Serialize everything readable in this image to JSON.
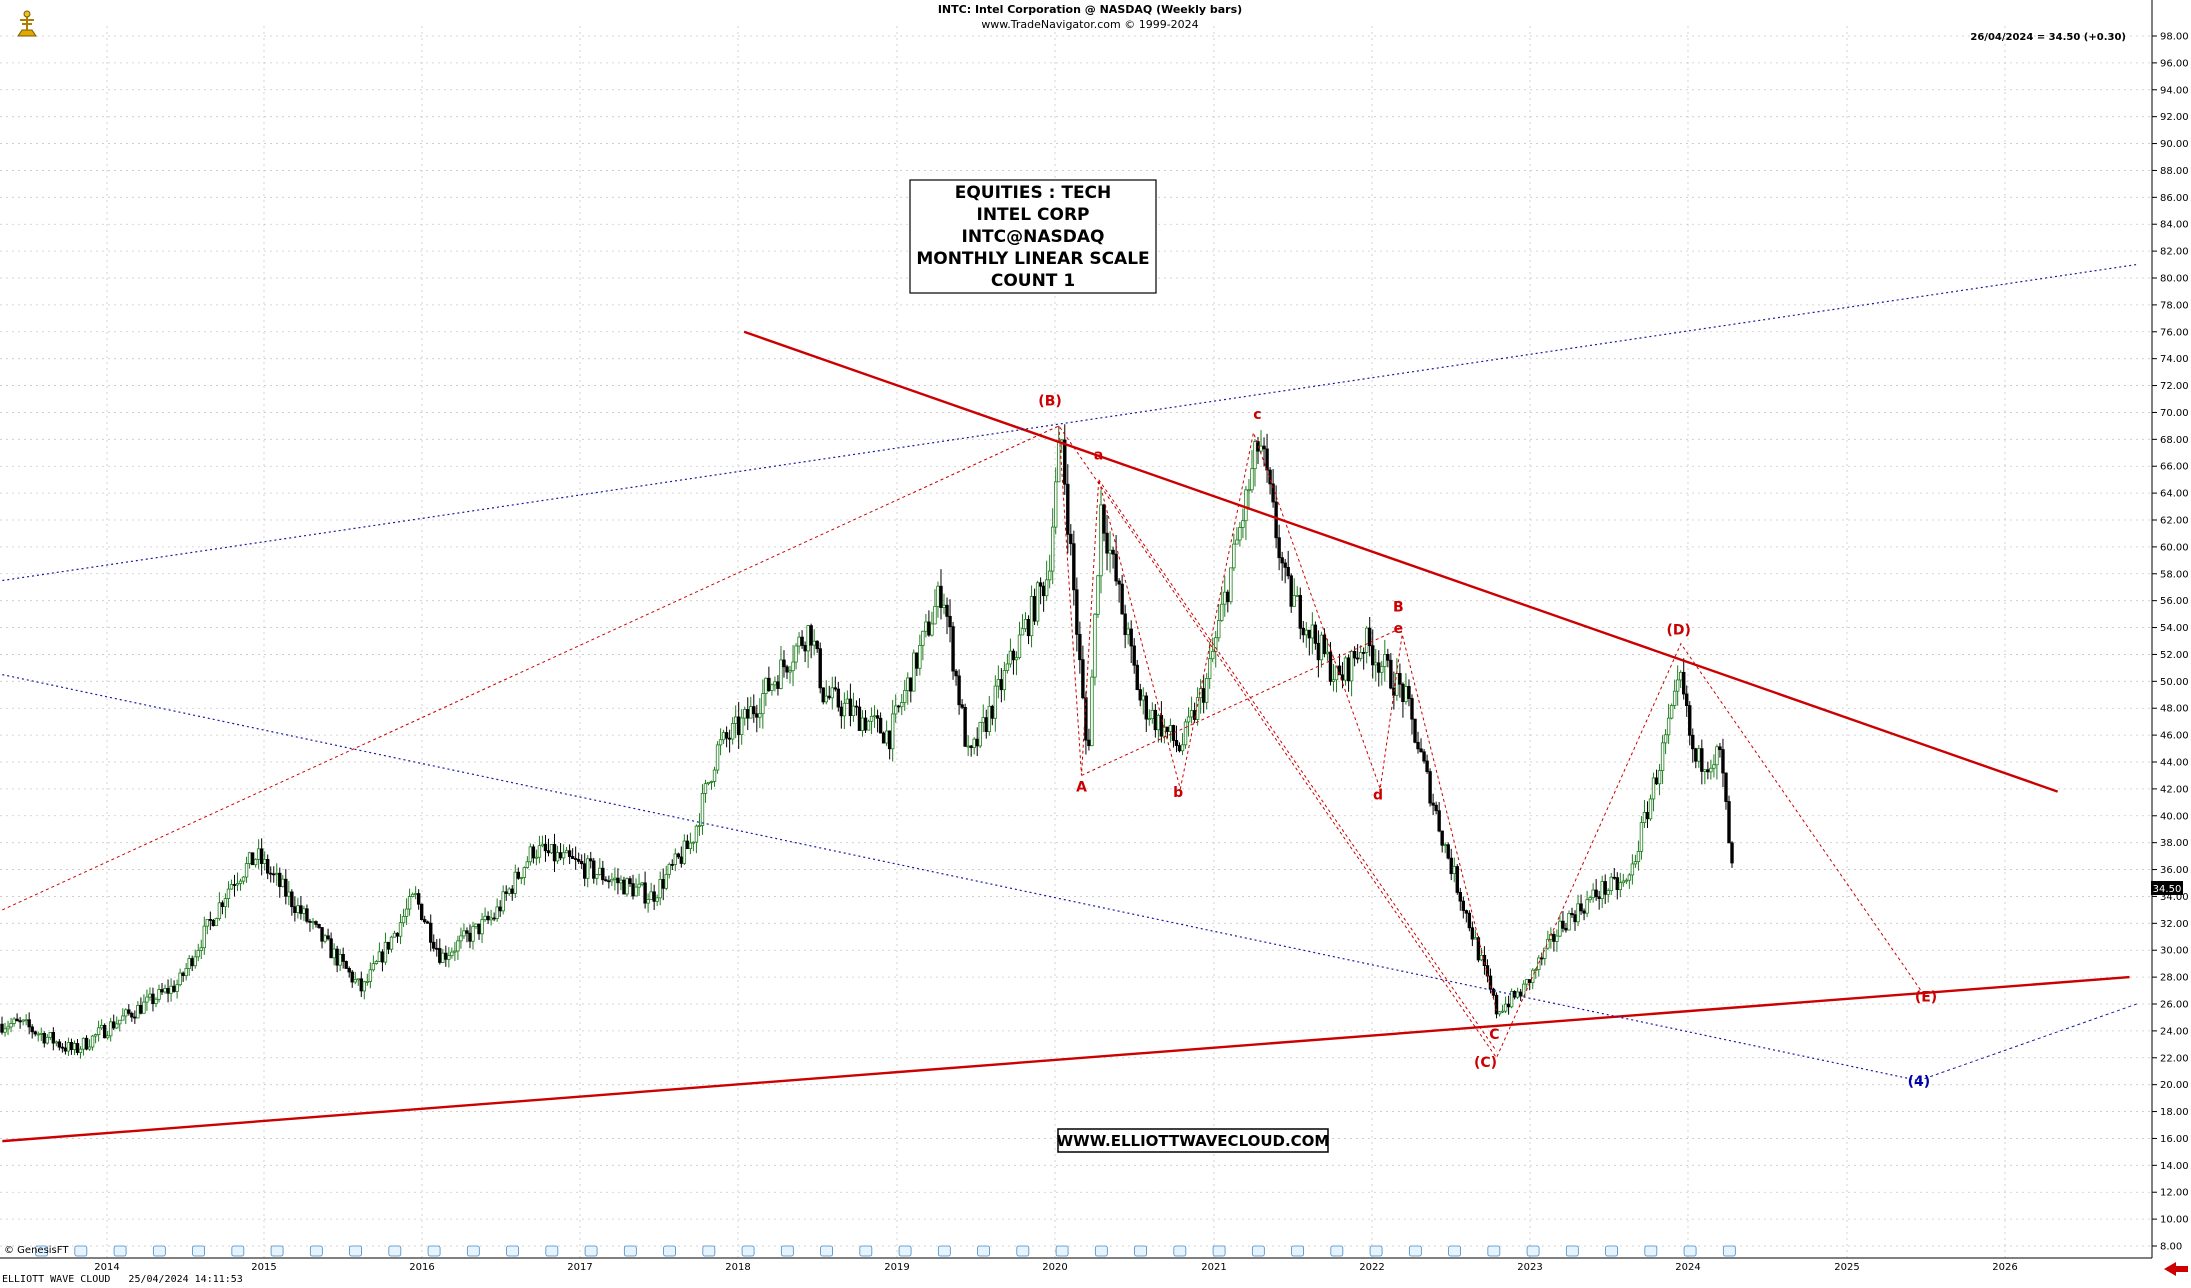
{
  "header": {
    "title": "INTC:  Intel Corporation @ NASDAQ  (Weekly bars)",
    "subtitle": "www.TradeNavigator.com © 1999-2024",
    "last_quote": "26/04/2024 = 34.50 (+0.30)",
    "price_tag": "34.50"
  },
  "info_box": {
    "lines": [
      "EQUITIES : TECH",
      "INTEL CORP",
      "INTC@NASDAQ",
      "MONTHLY LINEAR SCALE",
      "COUNT 1"
    ]
  },
  "watermark": "WWW.ELLIOTTWAVECLOUD.COM",
  "footer": {
    "left": "ELLIOTT WAVE CLOUD   25/04/2024 14:11:53",
    "credit": "© GenesisFT"
  },
  "colors": {
    "candle_up": "#1e7d1e",
    "candle_down": "#000000",
    "trend_red": "#cc0000",
    "trend_blue": "#1a1aa0",
    "label_red": "#cc0000",
    "label_blue": "#0000aa",
    "arrow_red": "#cc0000"
  },
  "chart_data": {
    "type": "candlestick",
    "title": "INTC:  Intel Corporation @ NASDAQ  (Weekly bars)",
    "x_axis": {
      "type": "date",
      "range": [
        "2013-06",
        "2026-11"
      ],
      "tick_labels": [
        "2014",
        "2015",
        "2016",
        "2017",
        "2018",
        "2019",
        "2020",
        "2021",
        "2022",
        "2023",
        "2024",
        "2025",
        "2026"
      ]
    },
    "y_axis": {
      "range": [
        8,
        98
      ],
      "step": 2,
      "grid": true,
      "tick_labels": [
        "8.00",
        "10.00",
        "12.00",
        "14.00",
        "16.00",
        "18.00",
        "20.00",
        "22.00",
        "24.00",
        "26.00",
        "28.00",
        "30.00",
        "32.00",
        "34.00",
        "36.00",
        "38.00",
        "40.00",
        "42.00",
        "44.00",
        "46.00",
        "48.00",
        "50.00",
        "52.00",
        "54.00",
        "56.00",
        "58.00",
        "60.00",
        "62.00",
        "64.00",
        "66.00",
        "68.00",
        "70.00",
        "72.00",
        "74.00",
        "76.00",
        "78.00",
        "80.00",
        "82.00",
        "84.00",
        "86.00",
        "88.00",
        "90.00",
        "92.00",
        "94.00",
        "96.00",
        "98.00"
      ]
    },
    "price_path": [
      [
        "2013-06",
        24.5
      ],
      [
        "2013-10",
        22.5
      ],
      [
        "2014-01",
        24.5
      ],
      [
        "2014-06",
        27.5
      ],
      [
        "2014-10",
        35.0
      ],
      [
        "2014-12",
        37.0
      ],
      [
        "2015-04",
        32.0
      ],
      [
        "2015-08",
        27.0
      ],
      [
        "2015-12",
        34.0
      ],
      [
        "2016-02",
        29.5
      ],
      [
        "2016-06",
        32.5
      ],
      [
        "2016-09",
        37.5
      ],
      [
        "2016-12",
        36.5
      ],
      [
        "2017-06",
        34.0
      ],
      [
        "2017-09",
        38.0
      ],
      [
        "2017-11",
        45.0
      ],
      [
        "2018-01",
        47.0
      ],
      [
        "2018-06",
        54.0
      ],
      [
        "2018-07",
        49.0
      ],
      [
        "2018-12",
        46.0
      ],
      [
        "2019-04",
        57.0
      ],
      [
        "2019-06",
        44.0
      ],
      [
        "2019-12",
        58.0
      ],
      [
        "2020-01",
        68.5
      ],
      [
        "2020-03",
        44.0
      ],
      [
        "2020-04",
        63.0
      ],
      [
        "2020-07",
        48.5
      ],
      [
        "2020-10",
        45.0
      ],
      [
        "2020-12",
        50.0
      ],
      [
        "2021-04",
        68.0
      ],
      [
        "2021-06",
        57.0
      ],
      [
        "2021-10",
        50.0
      ],
      [
        "2021-12",
        53.0
      ],
      [
        "2022-03",
        49.0
      ],
      [
        "2022-06",
        38.0
      ],
      [
        "2022-10",
        25.5
      ],
      [
        "2022-12",
        27.0
      ],
      [
        "2023-03",
        32.0
      ],
      [
        "2023-06",
        34.5
      ],
      [
        "2023-08",
        35.0
      ],
      [
        "2023-12",
        50.0
      ],
      [
        "2024-01",
        44.0
      ],
      [
        "2024-03",
        44.5
      ],
      [
        "2024-04",
        34.5
      ]
    ],
    "wave_labels": [
      {
        "text": "(B)",
        "x": "2019-12-20",
        "y": 70.5,
        "color": "red"
      },
      {
        "text": "a",
        "x": "2020-04-10",
        "y": 66.5,
        "color": "red"
      },
      {
        "text": "c",
        "x": "2021-04-10",
        "y": 69.5,
        "color": "red"
      },
      {
        "text": "A",
        "x": "2020-03-01",
        "y": 41.8,
        "color": "red"
      },
      {
        "text": "b",
        "x": "2020-10-10",
        "y": 41.4,
        "color": "red"
      },
      {
        "text": "B",
        "x": "2022-03-01",
        "y": 55.2,
        "color": "red"
      },
      {
        "text": "e",
        "x": "2022-03-01",
        "y": 53.6,
        "color": "red"
      },
      {
        "text": "d",
        "x": "2022-01-15",
        "y": 41.2,
        "color": "red"
      },
      {
        "text": "(D)",
        "x": "2023-12-10",
        "y": 53.5,
        "color": "red"
      },
      {
        "text": "C",
        "x": "2022-10-10",
        "y": 23.4,
        "color": "red"
      },
      {
        "text": "(C)",
        "x": "2022-09-20",
        "y": 21.3,
        "color": "red"
      },
      {
        "text": "(E)",
        "x": "2025-07-01",
        "y": 26.2,
        "color": "red"
      },
      {
        "text": "(4)",
        "x": "2025-06-15",
        "y": 19.9,
        "color": "blue"
      }
    ],
    "trendlines": [
      {
        "from": [
          "2018-01-15",
          76.0
        ],
        "to": [
          "2026-05-01",
          41.8
        ],
        "style": "solid",
        "color": "red"
      },
      {
        "from": [
          "2013-05-01",
          15.8
        ],
        "to": [
          "2026-10-15",
          28.0
        ],
        "style": "solid",
        "color": "red"
      },
      {
        "from": [
          "2013-05-01",
          57.5
        ],
        "to": [
          "2026-11-01",
          81.0
        ],
        "style": "dotted",
        "color": "blue"
      },
      {
        "from": [
          "2013-05-01",
          50.5
        ],
        "to": [
          "2025-06-15",
          20.3
        ],
        "style": "dotted",
        "color": "blue"
      }
    ],
    "channel_paths": [
      {
        "points": [
          [
            "2013-05-01",
            33.0
          ],
          [
            "2020-01-10",
            69.0
          ],
          [
            "2022-10-15",
            22.0
          ],
          [
            "2023-12-15",
            52.8
          ],
          [
            "2025-06-20",
            27.0
          ]
        ],
        "style": "dotted",
        "color": "red"
      },
      {
        "points": [
          [
            "2020-01-10",
            69.0
          ],
          [
            "2020-03-01",
            43.0
          ],
          [
            "2020-04-10",
            65.0
          ],
          [
            "2020-10-15",
            42.0
          ],
          [
            "2021-04-01",
            68.5
          ],
          [
            "2022-01-20",
            42.0
          ],
          [
            "2022-03-10",
            53.5
          ],
          [
            "2022-10-15",
            25.5
          ]
        ],
        "style": "dotted",
        "color": "red"
      },
      {
        "points": [
          [
            "2020-03-01",
            43.0
          ],
          [
            "2022-03-10",
            54.0
          ]
        ],
        "style": "dotted",
        "color": "red"
      },
      {
        "points": [
          [
            "2020-04-10",
            65.0
          ],
          [
            "2022-10-15",
            22.5
          ]
        ],
        "style": "dotted",
        "color": "red"
      },
      {
        "points": [
          [
            "2025-06-15",
            20.3
          ],
          [
            "2026-11-01",
            26.0
          ]
        ],
        "style": "dotted",
        "color": "blue"
      }
    ],
    "legend": "none"
  }
}
